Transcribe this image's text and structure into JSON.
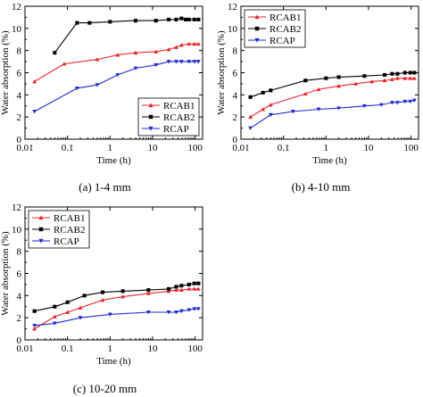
{
  "chart_data": [
    {
      "type": "line",
      "caption": "(a) 1-4 mm",
      "xlabel": "Time (h)",
      "ylabel": "Water absorption (%)",
      "xscale": "log",
      "xlim": [
        0.01,
        150
      ],
      "ylim": [
        0,
        12
      ],
      "xticks": [
        0.01,
        0.1,
        1,
        10,
        100
      ],
      "xtick_labels": [
        "0.01",
        "0.1",
        "1",
        "10",
        "100"
      ],
      "yticks": [
        0,
        2,
        4,
        6,
        8,
        10,
        12
      ],
      "ytick_labels": [
        "0",
        "2",
        "4",
        "6",
        "8",
        "10",
        "12"
      ],
      "legend_position": "bottom-right",
      "series": [
        {
          "name": "RCAB1",
          "color": "#e8262a",
          "marker": "triangle-up",
          "points": [
            [
              0.0167,
              5.2
            ],
            [
              0.0833,
              6.8
            ],
            [
              0.5,
              7.2
            ],
            [
              1.5,
              7.6
            ],
            [
              4,
              7.8
            ],
            [
              12,
              7.9
            ],
            [
              24,
              8.1
            ],
            [
              36,
              8.3
            ],
            [
              48,
              8.5
            ],
            [
              72,
              8.6
            ],
            [
              96,
              8.6
            ],
            [
              120,
              8.6
            ]
          ]
        },
        {
          "name": "RCAB2",
          "color": "#000000",
          "marker": "square",
          "points": [
            [
              0.05,
              7.8
            ],
            [
              0.167,
              10.5
            ],
            [
              0.33,
              10.5
            ],
            [
              1,
              10.6
            ],
            [
              4,
              10.7
            ],
            [
              12,
              10.7
            ],
            [
              24,
              10.8
            ],
            [
              36,
              10.8
            ],
            [
              48,
              10.9
            ],
            [
              60,
              10.8
            ],
            [
              72,
              10.8
            ],
            [
              96,
              10.8
            ],
            [
              120,
              10.8
            ]
          ]
        },
        {
          "name": "RCAP",
          "color": "#1f2bcc",
          "marker": "triangle-down",
          "points": [
            [
              0.0167,
              2.5
            ],
            [
              0.167,
              4.6
            ],
            [
              0.5,
              4.9
            ],
            [
              1.5,
              5.8
            ],
            [
              4,
              6.4
            ],
            [
              12,
              6.7
            ],
            [
              24,
              7.0
            ],
            [
              36,
              7.0
            ],
            [
              48,
              7.0
            ],
            [
              72,
              7.0
            ],
            [
              96,
              7.0
            ],
            [
              120,
              7.0
            ]
          ]
        }
      ]
    },
    {
      "type": "line",
      "caption": "(b) 4-10 mm",
      "xlabel": "Time (h)",
      "ylabel": "Water absorption (%)",
      "xscale": "log",
      "xlim": [
        0.01,
        150
      ],
      "ylim": [
        0,
        12
      ],
      "xticks": [
        0.01,
        0.1,
        1,
        10,
        100
      ],
      "xtick_labels": [
        "0.01",
        "0.1",
        "1",
        "10",
        "100"
      ],
      "yticks": [
        0,
        2,
        4,
        6,
        8,
        10,
        12
      ],
      "ytick_labels": [
        "0",
        "2",
        "4",
        "6",
        "8",
        "10",
        "12"
      ],
      "legend_position": "top-left",
      "series": [
        {
          "name": "RCAB1",
          "color": "#e8262a",
          "marker": "triangle-up",
          "points": [
            [
              0.0167,
              2.0
            ],
            [
              0.033,
              2.7
            ],
            [
              0.05,
              3.1
            ],
            [
              0.33,
              4.1
            ],
            [
              0.67,
              4.5
            ],
            [
              2,
              4.8
            ],
            [
              5,
              5.0
            ],
            [
              12,
              5.2
            ],
            [
              24,
              5.3
            ],
            [
              36,
              5.4
            ],
            [
              48,
              5.5
            ],
            [
              72,
              5.5
            ],
            [
              96,
              5.5
            ],
            [
              120,
              5.5
            ]
          ]
        },
        {
          "name": "RCAB2",
          "color": "#000000",
          "marker": "square",
          "points": [
            [
              0.0167,
              3.8
            ],
            [
              0.033,
              4.2
            ],
            [
              0.05,
              4.4
            ],
            [
              0.33,
              5.3
            ],
            [
              1,
              5.5
            ],
            [
              2,
              5.6
            ],
            [
              8,
              5.7
            ],
            [
              24,
              5.8
            ],
            [
              36,
              5.9
            ],
            [
              48,
              5.9
            ],
            [
              72,
              6.0
            ],
            [
              96,
              6.0
            ],
            [
              120,
              6.0
            ]
          ]
        },
        {
          "name": "RCAP",
          "color": "#1f2bcc",
          "marker": "triangle-down",
          "points": [
            [
              0.0167,
              1.0
            ],
            [
              0.05,
              2.2
            ],
            [
              0.167,
              2.5
            ],
            [
              0.67,
              2.7
            ],
            [
              2,
              2.8
            ],
            [
              8,
              3.0
            ],
            [
              20,
              3.1
            ],
            [
              36,
              3.3
            ],
            [
              48,
              3.3
            ],
            [
              72,
              3.4
            ],
            [
              96,
              3.4
            ],
            [
              120,
              3.5
            ]
          ]
        }
      ]
    },
    {
      "type": "line",
      "caption": "(c) 10-20 mm",
      "xlabel": "Time (h)",
      "ylabel": "Water absorption (%)",
      "xscale": "log",
      "xlim": [
        0.01,
        150
      ],
      "ylim": [
        0,
        12
      ],
      "xticks": [
        0.01,
        0.1,
        1,
        10,
        100
      ],
      "xtick_labels": [
        "0.01",
        "0.1",
        "1",
        "10",
        "100"
      ],
      "yticks": [
        0,
        2,
        4,
        6,
        8,
        10,
        12
      ],
      "ytick_labels": [
        "0",
        "2",
        "4",
        "6",
        "8",
        "10",
        "12"
      ],
      "legend_position": "top-left",
      "series": [
        {
          "name": "RCAB1",
          "color": "#e8262a",
          "marker": "triangle-up",
          "points": [
            [
              0.0167,
              1.0
            ],
            [
              0.05,
              2.1
            ],
            [
              0.1,
              2.5
            ],
            [
              0.2,
              2.9
            ],
            [
              0.67,
              3.6
            ],
            [
              2,
              3.9
            ],
            [
              8,
              4.2
            ],
            [
              24,
              4.4
            ],
            [
              36,
              4.5
            ],
            [
              48,
              4.5
            ],
            [
              72,
              4.6
            ],
            [
              96,
              4.6
            ],
            [
              120,
              4.6
            ]
          ]
        },
        {
          "name": "RCAB2",
          "color": "#000000",
          "marker": "square",
          "points": [
            [
              0.0167,
              2.6
            ],
            [
              0.05,
              3.0
            ],
            [
              0.1,
              3.4
            ],
            [
              0.25,
              4.0
            ],
            [
              0.67,
              4.3
            ],
            [
              2,
              4.4
            ],
            [
              8,
              4.5
            ],
            [
              24,
              4.6
            ],
            [
              36,
              4.8
            ],
            [
              48,
              4.9
            ],
            [
              72,
              5.0
            ],
            [
              96,
              5.1
            ],
            [
              120,
              5.1
            ]
          ]
        },
        {
          "name": "RCAP",
          "color": "#1f2bcc",
          "marker": "triangle-down",
          "points": [
            [
              0.0167,
              1.3
            ],
            [
              0.05,
              1.5
            ],
            [
              0.2,
              2.0
            ],
            [
              1,
              2.3
            ],
            [
              8,
              2.5
            ],
            [
              24,
              2.5
            ],
            [
              36,
              2.5
            ],
            [
              48,
              2.6
            ],
            [
              72,
              2.7
            ],
            [
              96,
              2.8
            ],
            [
              120,
              2.8
            ]
          ]
        }
      ]
    }
  ]
}
